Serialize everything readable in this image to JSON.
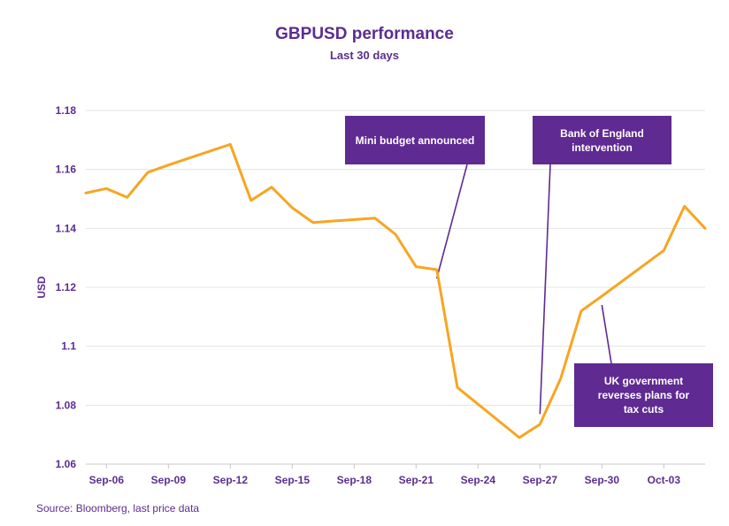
{
  "chart_data": {
    "type": "line",
    "title": "GBPUSD performance",
    "subtitle": "Last 30 days",
    "ylabel": "USD",
    "ylim": [
      1.06,
      1.18
    ],
    "yticks": [
      1.06,
      1.08,
      1.1,
      1.12,
      1.14,
      1.16,
      1.18
    ],
    "ytick_labels": [
      "1.06",
      "1.08",
      "1.1",
      "1.12",
      "1.14",
      "1.16",
      "1.18"
    ],
    "xlim": [
      "2022-09-05",
      "2022-10-05"
    ],
    "xticks": [
      "2022-09-06",
      "2022-09-09",
      "2022-09-12",
      "2022-09-15",
      "2022-09-18",
      "2022-09-21",
      "2022-09-24",
      "2022-09-27",
      "2022-09-30",
      "2022-10-03"
    ],
    "xtick_labels": [
      "Sep-06",
      "Sep-09",
      "Sep-12",
      "Sep-15",
      "Sep-18",
      "Sep-21",
      "Sep-24",
      "Sep-27",
      "Sep-30",
      "Oct-03"
    ],
    "grid": "horizontal",
    "line_color": "#f7a521",
    "series": [
      {
        "x": [
          "2022-09-05",
          "2022-09-06",
          "2022-09-07",
          "2022-09-08",
          "2022-09-09",
          "2022-09-12",
          "2022-09-13",
          "2022-09-14",
          "2022-09-15",
          "2022-09-16",
          "2022-09-19",
          "2022-09-20",
          "2022-09-21",
          "2022-09-22",
          "2022-09-23",
          "2022-09-26",
          "2022-09-27",
          "2022-09-28",
          "2022-09-29",
          "2022-09-30",
          "2022-10-03",
          "2022-10-04",
          "2022-10-05"
        ],
        "y": [
          1.152,
          1.1535,
          1.1505,
          1.159,
          1.1615,
          1.1685,
          1.1495,
          1.154,
          1.147,
          1.142,
          1.1435,
          1.138,
          1.127,
          1.126,
          1.086,
          1.069,
          1.0735,
          1.089,
          1.112,
          1.117,
          1.1325,
          1.1475,
          1.14
        ]
      }
    ],
    "annotations": [
      {
        "text": "Mini budget announced",
        "target": [
          "2022-09-22",
          1.123
        ]
      },
      {
        "text": "Bank of England\nintervention",
        "target": [
          "2022-09-27",
          1.077
        ]
      },
      {
        "text": "UK government\nreverses plans for\ntax cuts",
        "target": [
          "2022-09-30",
          1.114
        ]
      }
    ],
    "source": "Source: Bloomberg, last price data"
  }
}
